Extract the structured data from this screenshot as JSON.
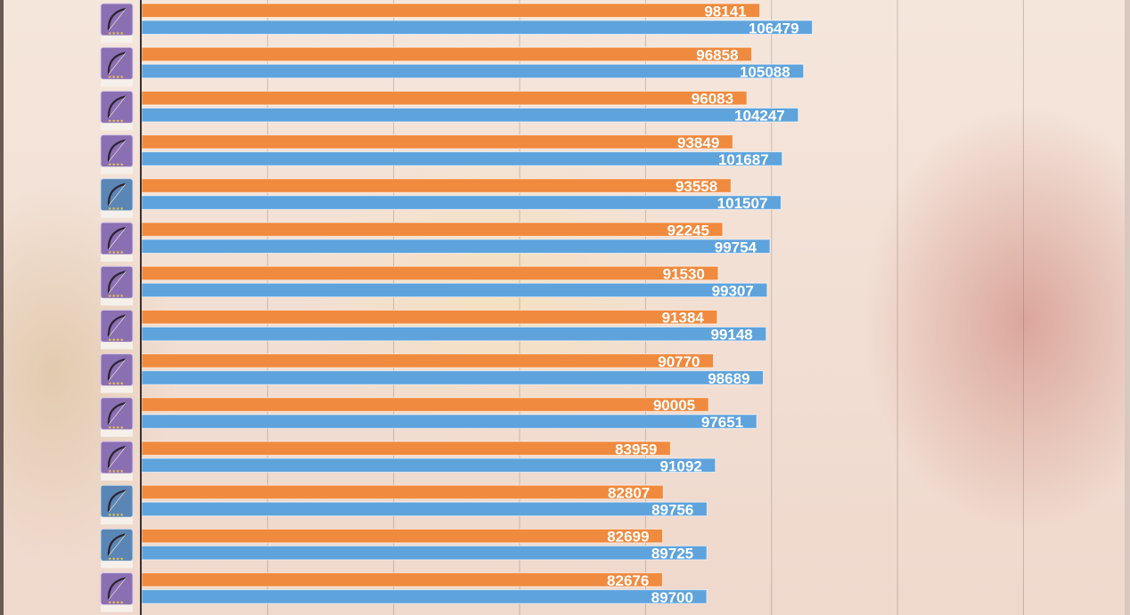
{
  "chart_data": {
    "type": "bar",
    "orientation": "horizontal",
    "categories": [
      "",
      "",
      "",
      "",
      "",
      "",
      "",
      "",
      "",
      "",
      "",
      "",
      "",
      ""
    ],
    "series": [
      {
        "color": "#f08a3e",
        "values": [
          98141,
          96858,
          96083,
          93849,
          93558,
          92245,
          91530,
          91384,
          90770,
          90005,
          83959,
          82807,
          82699,
          82676
        ]
      },
      {
        "color": "#5ea3dc",
        "values": [
          106479,
          105088,
          104247,
          101687,
          101507,
          99754,
          99307,
          99148,
          98689,
          97651,
          91092,
          89756,
          89725,
          89700
        ]
      }
    ],
    "xlim": [
      0,
      148000
    ],
    "grid": true,
    "legend": "none",
    "icon_styles": [
      "purple",
      "purple",
      "purple",
      "purple",
      "blue",
      "purple",
      "purple",
      "purple",
      "purple",
      "purple",
      "purple",
      "blue",
      "blue",
      "purple"
    ]
  }
}
